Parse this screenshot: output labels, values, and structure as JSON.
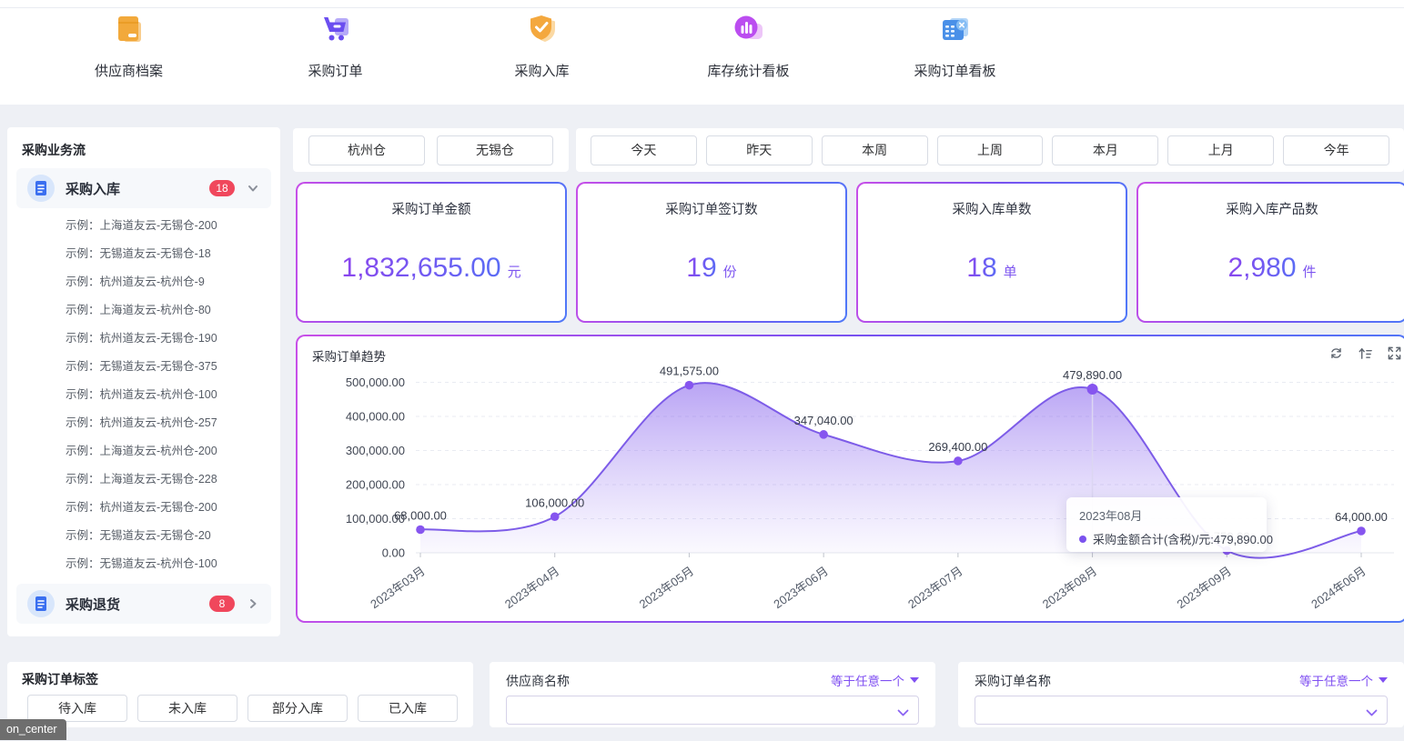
{
  "nav": {
    "items": [
      {
        "label": "供应商档案",
        "icon": "supplier-archive-icon"
      },
      {
        "label": "采购订单",
        "icon": "purchase-cart-icon"
      },
      {
        "label": "采购入库",
        "icon": "inbound-shield-icon"
      },
      {
        "label": "库存统计看板",
        "icon": "inventory-chart-icon"
      },
      {
        "label": "采购订单看板",
        "icon": "order-board-icon"
      }
    ]
  },
  "sidebar": {
    "title": "采购业务流",
    "inbound_group": {
      "label": "采购入库",
      "badge": "18",
      "items": [
        "示例：上海道友云-无锡仓-200",
        "示例：无锡道友云-无锡仓-18",
        "示例：杭州道友云-杭州仓-9",
        "示例：上海道友云-杭州仓-80",
        "示例：杭州道友云-无锡仓-190",
        "示例：无锡道友云-无锡仓-375",
        "示例：杭州道友云-杭州仓-100",
        "示例：杭州道友云-杭州仓-257",
        "示例：上海道友云-杭州仓-200",
        "示例：上海道友云-无锡仓-228",
        "示例：杭州道友云-无锡仓-200",
        "示例：无锡道友云-无锡仓-20",
        "示例：无锡道友云-杭州仓-100"
      ]
    },
    "return_group": {
      "label": "采购退货",
      "badge": "8"
    }
  },
  "filters": {
    "warehouses": [
      "杭州仓",
      "无锡仓"
    ],
    "dates": [
      "今天",
      "昨天",
      "本周",
      "上周",
      "本月",
      "上月",
      "今年"
    ]
  },
  "stats": [
    {
      "title": "采购订单金额",
      "value": "1,832,655.00",
      "unit": "元"
    },
    {
      "title": "采购订单签订数",
      "value": "19",
      "unit": "份"
    },
    {
      "title": "采购入库单数",
      "value": "18",
      "unit": "单"
    },
    {
      "title": "采购入库产品数",
      "value": "2,980",
      "unit": "件"
    }
  ],
  "chart_data": {
    "type": "area",
    "title": "采购订单趋势",
    "x": [
      "2023年03月",
      "2023年04月",
      "2023年05月",
      "2023年06月",
      "2023年07月",
      "2023年08月",
      "2023年09月",
      "2024年06月"
    ],
    "series": [
      {
        "name": "采购金额合计(含税)/元",
        "values": [
          68000,
          106000,
          491575,
          347040,
          269400,
          479890,
          6750,
          64000
        ]
      }
    ],
    "ylim": [
      0,
      500000
    ],
    "y_tick_step": 100000,
    "grid": "horizontal-dashed",
    "legend_position": "none",
    "highlight_index": 5,
    "line_color": "#7d5ce8",
    "point_color": "#8655ef",
    "tooltip": {
      "title": "2023年08月",
      "text": "采购金额合计(含税)/元:479,890.00"
    },
    "toolbar_icons": [
      "refresh",
      "sort-asc",
      "fullscreen"
    ]
  },
  "bottom": {
    "tags_card": {
      "title": "采购订单标签",
      "buttons": [
        "待入库",
        "未入库",
        "部分入库",
        "已入库"
      ]
    },
    "supplier_card": {
      "label": "供应商名称",
      "operator": "等于任意一个",
      "value": ""
    },
    "order_card": {
      "label": "采购订单名称",
      "operator": "等于任意一个",
      "value": ""
    }
  },
  "statusbar": {
    "text": "on_center"
  }
}
